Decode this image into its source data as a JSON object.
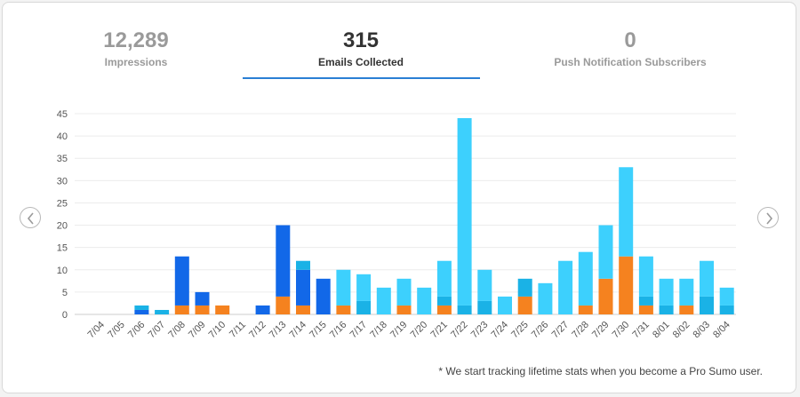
{
  "stats": [
    {
      "value": "12,289",
      "label": "Impressions"
    },
    {
      "value": "315",
      "label": "Emails Collected"
    },
    {
      "value": "0",
      "label": "Push Notification Subscribers"
    }
  ],
  "active_tab": 1,
  "footnote": "* We start tracking lifetime stats when you become a Pro Sumo user.",
  "nav": {
    "prev_icon": "chevron-left-icon",
    "next_icon": "chevron-right-icon"
  },
  "colors": {
    "orange": "#f5821f",
    "dark_blue": "#1268e8",
    "mid_blue": "#1ab2e6",
    "light_blue": "#3dd0fd",
    "accent": "#2a7fd4"
  },
  "chart_data": {
    "type": "bar",
    "stacked": true,
    "ylim": [
      0,
      45
    ],
    "yticks": [
      0,
      5,
      10,
      15,
      20,
      25,
      30,
      35,
      40,
      45
    ],
    "grid": true,
    "categories": [
      "7/04",
      "7/05",
      "7/06",
      "7/07",
      "7/08",
      "7/09",
      "7/10",
      "7/11",
      "7/12",
      "7/13",
      "7/14",
      "7/15",
      "7/16",
      "7/17",
      "7/18",
      "7/19",
      "7/20",
      "7/21",
      "7/22",
      "7/23",
      "7/24",
      "7/25",
      "7/26",
      "7/27",
      "7/28",
      "7/29",
      "7/30",
      "7/31",
      "8/01",
      "8/02",
      "8/03",
      "8/04"
    ],
    "series": [
      {
        "color": "orange",
        "values": [
          0,
          0,
          0,
          0,
          2,
          2,
          2,
          0,
          0,
          4,
          2,
          0,
          2,
          0,
          0,
          2,
          0,
          2,
          0,
          0,
          0,
          4,
          0,
          0,
          2,
          8,
          13,
          2,
          0,
          2,
          0,
          0
        ]
      },
      {
        "color": "dark_blue",
        "values": [
          0,
          0,
          1,
          0,
          11,
          3,
          0,
          0,
          2,
          16,
          8,
          8,
          0,
          0,
          0,
          0,
          0,
          0,
          0,
          0,
          0,
          0,
          0,
          0,
          0,
          0,
          0,
          0,
          0,
          0,
          0,
          0
        ]
      },
      {
        "color": "mid_blue",
        "values": [
          0,
          0,
          1,
          1,
          0,
          0,
          0,
          0,
          0,
          0,
          2,
          0,
          0,
          3,
          0,
          0,
          0,
          2,
          2,
          3,
          0,
          4,
          0,
          0,
          0,
          0,
          0,
          2,
          2,
          0,
          4,
          2
        ]
      },
      {
        "color": "light_blue",
        "values": [
          0,
          0,
          0,
          0,
          0,
          0,
          0,
          0,
          0,
          0,
          0,
          0,
          8,
          6,
          6,
          6,
          6,
          8,
          42,
          7,
          4,
          0,
          7,
          12,
          12,
          12,
          20,
          9,
          6,
          6,
          8,
          4
        ]
      }
    ]
  }
}
